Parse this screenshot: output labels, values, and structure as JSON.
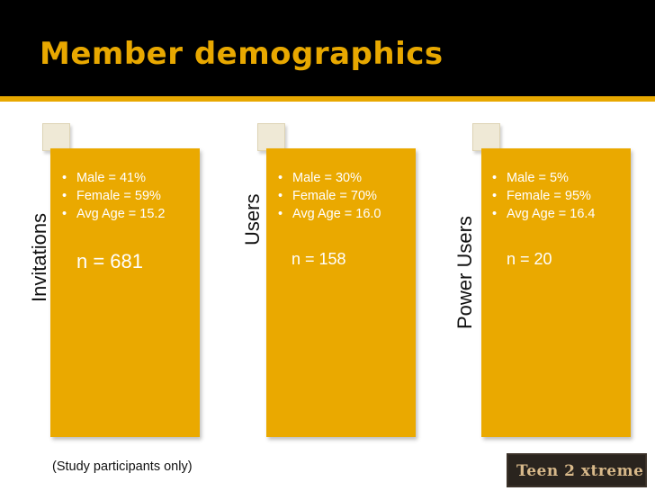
{
  "title": "Member demographics",
  "colors": {
    "title_bar": "#000000",
    "accent": "#e8a800",
    "panel": "#eaa900",
    "panel_text": "#ffffff",
    "tab_square": "#efe9d6"
  },
  "groups": [
    {
      "label": "Invitations",
      "bullets": [
        "Male = 41%",
        "Female = 59%",
        "Avg Age = 15.2"
      ],
      "n": "n = 681"
    },
    {
      "label": "Users",
      "bullets": [
        "Male = 30%",
        "Female = 70%",
        "Avg Age = 16.0"
      ],
      "n": "n = 158"
    },
    {
      "label": "Power Users",
      "bullets": [
        "Male = 5%",
        "Female = 95%",
        "Avg Age = 16.4"
      ],
      "n": "n = 20"
    }
  ],
  "footnote": "(Study participants only)",
  "logo": {
    "text": "Teen 2 xtreme"
  }
}
